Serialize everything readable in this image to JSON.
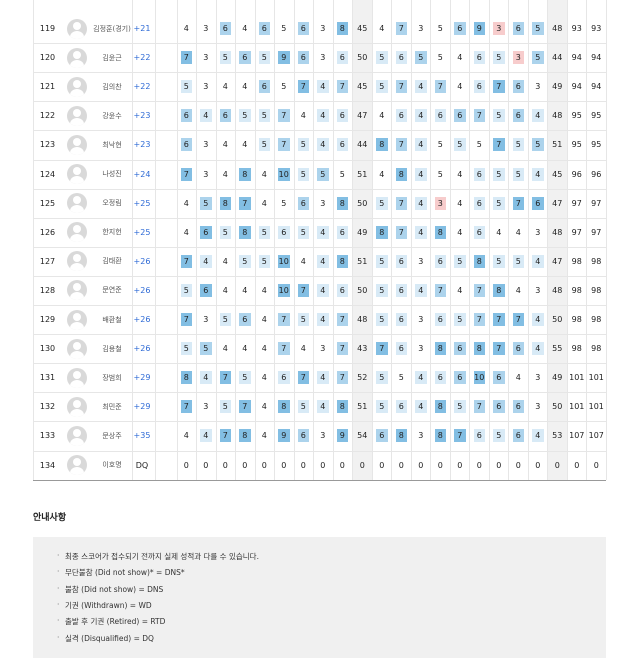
{
  "table": {
    "shade_colors": [
      "#ffffff",
      "#d8eaf6",
      "#acd3ec",
      "#82bee3",
      "#f7cccc"
    ],
    "rows": [
      {
        "rank": 119,
        "name": "김정훈(경기)",
        "score": "+21",
        "front": [
          4,
          3,
          6,
          4,
          6,
          5,
          6,
          3,
          8
        ],
        "out": 45,
        "back": [
          4,
          7,
          3,
          5,
          6,
          9,
          3,
          6,
          5
        ],
        "in": 48,
        "round": 93,
        "total": 93,
        "shade": "002020203020023422"
      },
      {
        "rank": 120,
        "name": "김윤근",
        "score": "+22",
        "front": [
          7,
          3,
          5,
          6,
          5,
          9,
          6,
          3,
          6
        ],
        "out": 50,
        "back": [
          5,
          6,
          5,
          5,
          4,
          6,
          5,
          3,
          5
        ],
        "in": 44,
        "round": 94,
        "total": 94,
        "shade": "301213201112001142"
      },
      {
        "rank": 121,
        "name": "김의찬",
        "score": "+22",
        "front": [
          5,
          3,
          4,
          4,
          6,
          5,
          7,
          4,
          7
        ],
        "out": 45,
        "back": [
          5,
          7,
          4,
          7,
          4,
          6,
          7,
          6,
          3
        ],
        "in": 49,
        "round": 94,
        "total": 94,
        "shade": "100020312121201320"
      },
      {
        "rank": 122,
        "name": "강윤수",
        "score": "+23",
        "front": [
          6,
          4,
          6,
          5,
          5,
          7,
          4,
          4,
          6
        ],
        "out": 47,
        "back": [
          4,
          6,
          4,
          6,
          6,
          7,
          5,
          6,
          4
        ],
        "in": 48,
        "round": 95,
        "total": 95,
        "shade": "212112011011122121"
      },
      {
        "rank": 123,
        "name": "최낙현",
        "score": "+23",
        "front": [
          6,
          3,
          4,
          4,
          5,
          7,
          5,
          4,
          6
        ],
        "out": 44,
        "back": [
          8,
          7,
          4,
          5,
          5,
          5,
          7,
          5,
          5
        ],
        "in": 51,
        "round": 95,
        "total": 95,
        "shade": "200012111321010312"
      },
      {
        "rank": 124,
        "name": "나성진",
        "score": "+24",
        "front": [
          7,
          3,
          4,
          8,
          4,
          10,
          5,
          5,
          5
        ],
        "out": 51,
        "back": [
          4,
          8,
          4,
          5,
          4,
          6,
          5,
          5,
          4
        ],
        "in": 45,
        "round": 96,
        "total": 96,
        "shade": "300303120031001111"
      },
      {
        "rank": 125,
        "name": "오정림",
        "score": "+25",
        "front": [
          4,
          5,
          8,
          7,
          4,
          5,
          6,
          3,
          8
        ],
        "out": 50,
        "back": [
          5,
          7,
          4,
          3,
          4,
          6,
          5,
          7,
          6
        ],
        "in": 47,
        "round": 97,
        "total": 97,
        "shade": "023300203121401133"
      },
      {
        "rank": 126,
        "name": "한지헌",
        "score": "+25",
        "front": [
          4,
          6,
          5,
          8,
          5,
          6,
          5,
          4,
          6
        ],
        "out": 49,
        "back": [
          8,
          7,
          4,
          8,
          4,
          6,
          4,
          4,
          3
        ],
        "in": 48,
        "round": 97,
        "total": 97,
        "shade": "031311111321301000"
      },
      {
        "rank": 127,
        "name": "김태환",
        "score": "+26",
        "front": [
          7,
          4,
          4,
          5,
          5,
          10,
          4,
          4,
          8
        ],
        "out": 51,
        "back": [
          5,
          6,
          3,
          6,
          5,
          8,
          5,
          5,
          4
        ],
        "in": 47,
        "round": 98,
        "total": 98,
        "shade": "310113013110113111"
      },
      {
        "rank": 128,
        "name": "문연준",
        "score": "+26",
        "front": [
          5,
          6,
          4,
          4,
          4,
          10,
          7,
          4,
          6
        ],
        "out": 50,
        "back": [
          5,
          6,
          4,
          7,
          4,
          7,
          8,
          4,
          3
        ],
        "in": 48,
        "round": 98,
        "total": 98,
        "shade": "130003311111202300"
      },
      {
        "rank": 129,
        "name": "배환철",
        "score": "+26",
        "front": [
          7,
          3,
          5,
          6,
          4,
          7,
          5,
          4,
          7
        ],
        "out": 48,
        "back": [
          5,
          6,
          3,
          6,
          5,
          7,
          7,
          7,
          4
        ],
        "in": 50,
        "round": 98,
        "total": 98,
        "shade": "301202112110112331"
      },
      {
        "rank": 130,
        "name": "김용철",
        "score": "+26",
        "front": [
          5,
          5,
          4,
          4,
          4,
          7,
          4,
          3,
          7
        ],
        "out": 43,
        "back": [
          7,
          6,
          3,
          8,
          6,
          8,
          7,
          6,
          4
        ],
        "in": 55,
        "round": 98,
        "total": 98,
        "shade": "120002002310323321"
      },
      {
        "rank": 131,
        "name": "장범희",
        "score": "+29",
        "front": [
          8,
          4,
          7,
          5,
          4,
          6,
          7,
          4,
          7
        ],
        "out": 52,
        "back": [
          5,
          5,
          4,
          6,
          6,
          10,
          6,
          4,
          3
        ],
        "in": 49,
        "round": 101,
        "total": 101,
        "shade": "313101312101123200"
      },
      {
        "rank": 132,
        "name": "최민준",
        "score": "+29",
        "front": [
          7,
          3,
          5,
          7,
          4,
          8,
          5,
          4,
          8
        ],
        "out": 51,
        "back": [
          5,
          6,
          4,
          8,
          5,
          7,
          6,
          6,
          3
        ],
        "in": 50,
        "round": 101,
        "total": 101,
        "shade": "301303113111312220"
      },
      {
        "rank": 133,
        "name": "문상주",
        "score": "+35",
        "front": [
          4,
          4,
          7,
          8,
          4,
          9,
          6,
          3,
          9
        ],
        "out": 54,
        "back": [
          6,
          8,
          3,
          8,
          7,
          6,
          5,
          6,
          4
        ],
        "in": 53,
        "round": 107,
        "total": 107,
        "shade": "013303203230331121"
      },
      {
        "rank": 134,
        "name": "이호명",
        "score": "DQ",
        "front": [
          0,
          0,
          0,
          0,
          0,
          0,
          0,
          0,
          0
        ],
        "out": 0,
        "back": [
          0,
          0,
          0,
          0,
          0,
          0,
          0,
          0,
          0
        ],
        "in": 0,
        "round": 0,
        "total": 0,
        "shade": "000000000000000000"
      }
    ]
  },
  "notes": {
    "title": "안내사항",
    "items": [
      "최종 스코어가 접수되기 전까지 실제 성적과 다를 수 있습니다.",
      "무단불참 (Did not show)* = DNS*",
      "불참 (Did not show) = DNS",
      "기권 (Withdrawn) = WD",
      "출발 후 기권 (Retired) = RTD",
      "실격 (Disqualified) = DQ"
    ]
  }
}
